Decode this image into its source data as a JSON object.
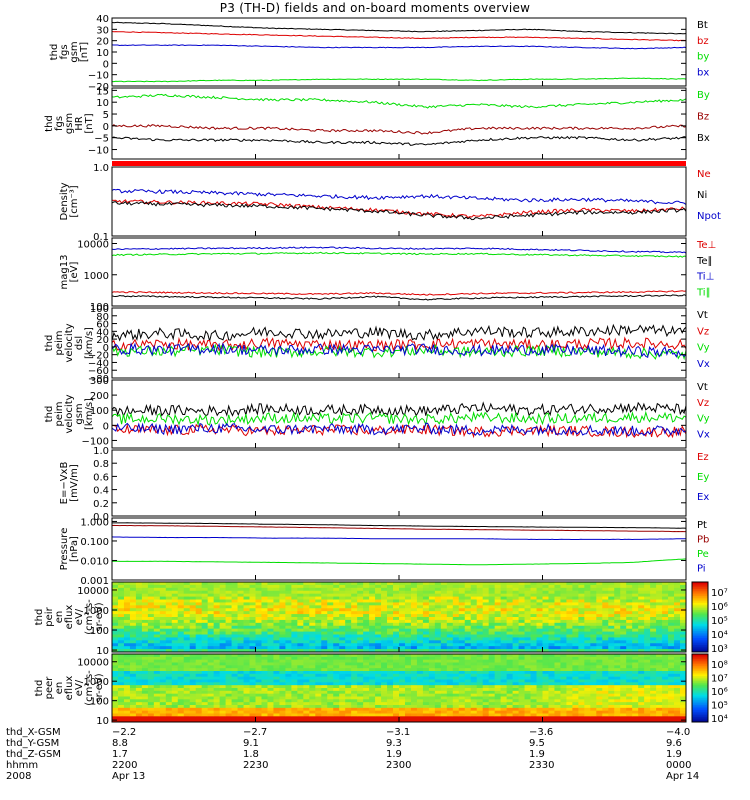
{
  "title": "P3 (TH-D) fields and on-board moments overview",
  "chart_data": [
    {
      "id": "fgs_gsm",
      "type": "line",
      "ylabel": [
        "thd",
        "fgs",
        "gsm",
        "[nT]"
      ],
      "ylim": [
        -20,
        40
      ],
      "log": false,
      "ticks": [
        "40",
        "30",
        "20",
        "10",
        "0",
        "−10",
        "−20"
      ],
      "tickvals": [
        40,
        30,
        20,
        10,
        0,
        -10,
        -20
      ],
      "series": [
        {
          "name": "Bt",
          "color": "#000000",
          "values": [
            36,
            35,
            33,
            31,
            30,
            29,
            28,
            29,
            30,
            28,
            27,
            26
          ]
        },
        {
          "name": "bz",
          "color": "#dd0000",
          "values": [
            28,
            27,
            26,
            25,
            24,
            23,
            22,
            23,
            23,
            22,
            21,
            20
          ]
        },
        {
          "name": "by",
          "color": "#00dd00",
          "values": [
            -16,
            -16,
            -15,
            -15,
            -14,
            -14,
            -14,
            -15,
            -14,
            -14,
            -13,
            -14
          ]
        },
        {
          "name": "bx",
          "color": "#0000cc",
          "values": [
            16,
            16,
            16,
            15,
            14,
            14,
            14,
            15,
            15,
            14,
            13,
            14
          ]
        }
      ]
    },
    {
      "id": "fgs_gsm_hr",
      "type": "line",
      "ylabel": [
        "thd",
        "fgs",
        "gsm",
        "HR",
        "[nT]"
      ],
      "ylim": [
        -14,
        16
      ],
      "log": false,
      "ticks": [
        "15",
        "10",
        "5",
        "0",
        "−5",
        "−10"
      ],
      "tickvals": [
        15,
        10,
        5,
        0,
        -5,
        -10
      ],
      "series": [
        {
          "name": "By",
          "color": "#00dd00",
          "values": [
            12,
            13,
            12,
            11,
            11,
            10,
            8,
            9,
            8,
            9,
            10,
            11
          ]
        },
        {
          "name": "Bz",
          "color": "#990000",
          "values": [
            0,
            0,
            -1,
            -1,
            -2,
            -2,
            -3,
            -1,
            -1,
            -1,
            -1,
            0
          ]
        },
        {
          "name": "Bx",
          "color": "#000000",
          "values": [
            -5,
            -6,
            -6,
            -6,
            -7,
            -7,
            -8,
            -6,
            -5,
            -5,
            -6,
            -5
          ]
        }
      ]
    },
    {
      "id": "density",
      "type": "line",
      "ylabel": [
        "Density",
        "[cm⁻³]"
      ],
      "ylim": [
        0.1,
        1.0
      ],
      "log": true,
      "ticks": [
        "1.0",
        "0.1"
      ],
      "tickvals": [
        1.0,
        0.1
      ],
      "series": [
        {
          "name": "Ne",
          "color": "#dd0000",
          "values": [
            0.32,
            0.31,
            0.3,
            0.29,
            0.26,
            0.24,
            0.21,
            0.19,
            0.22,
            0.24,
            0.23,
            0.25
          ]
        },
        {
          "name": "Ni",
          "color": "#000000",
          "values": [
            0.3,
            0.29,
            0.28,
            0.27,
            0.25,
            0.23,
            0.2,
            0.18,
            0.2,
            0.22,
            0.22,
            0.24
          ]
        },
        {
          "name": "Npot",
          "color": "#0000cc",
          "values": [
            0.45,
            0.44,
            0.42,
            0.4,
            0.38,
            0.36,
            0.38,
            0.35,
            0.33,
            0.34,
            0.32,
            0.3
          ]
        }
      ]
    },
    {
      "id": "temperature",
      "type": "line",
      "ylabel": [
        "mag13",
        "[eV]"
      ],
      "ylim": [
        100,
        15000
      ],
      "log": true,
      "ticks": [
        "10000",
        "1000",
        "100"
      ],
      "tickvals": [
        10000,
        1000,
        100
      ],
      "series": [
        {
          "name": "Te⊥",
          "color": "#dd0000",
          "values": [
            280,
            270,
            260,
            250,
            240,
            260,
            230,
            250,
            260,
            270,
            280,
            300
          ]
        },
        {
          "name": "Te∥",
          "color": "#000000",
          "values": [
            210,
            200,
            190,
            180,
            170,
            200,
            160,
            180,
            190,
            200,
            210,
            220
          ]
        },
        {
          "name": "Ti⊥",
          "color": "#0000cc",
          "values": [
            6500,
            6800,
            7000,
            7200,
            7500,
            7000,
            6800,
            7000,
            6500,
            6000,
            5500,
            5200
          ]
        },
        {
          "name": "Ti∥",
          "color": "#00dd00",
          "values": [
            4300,
            4500,
            4700,
            4800,
            5000,
            4800,
            4600,
            4700,
            4400,
            4200,
            4000,
            3800
          ]
        }
      ]
    },
    {
      "id": "peim_velocity_dsl",
      "type": "line",
      "ylabel": [
        "thd",
        "peim",
        "velocity",
        "dsl",
        "[km/s]"
      ],
      "ylim": [
        -80,
        100
      ],
      "log": false,
      "ticks": [
        "100",
        "80",
        "60",
        "40",
        "20",
        "0",
        "−20",
        "−40",
        "−60",
        "−80"
      ],
      "tickvals": [
        100,
        80,
        60,
        40,
        20,
        0,
        -20,
        -40,
        -60,
        -80
      ],
      "series": [
        {
          "name": "Vt",
          "color": "#000000",
          "values": [
            30,
            35,
            28,
            40,
            33,
            38,
            30,
            42,
            36,
            40,
            45,
            38
          ]
        },
        {
          "name": "Vz",
          "color": "#dd0000",
          "values": [
            5,
            8,
            3,
            10,
            6,
            4,
            7,
            9,
            5,
            8,
            10,
            6
          ]
        },
        {
          "name": "Vy",
          "color": "#00dd00",
          "values": [
            -10,
            -12,
            -8,
            -15,
            -11,
            -13,
            -9,
            -14,
            -10,
            -12,
            -16,
            -20
          ]
        },
        {
          "name": "Vx",
          "color": "#0000cc",
          "values": [
            -5,
            -7,
            -4,
            -9,
            -6,
            -8,
            -5,
            -10,
            -7,
            -9,
            -12,
            -15
          ]
        }
      ]
    },
    {
      "id": "peim_velocity_gsm",
      "type": "line",
      "ylabel": [
        "thd",
        "peim",
        "velocity",
        "gsm",
        "[km/s]"
      ],
      "ylim": [
        -150,
        300
      ],
      "log": false,
      "ticks": [
        "300",
        "200",
        "100",
        "0",
        "−100"
      ],
      "tickvals": [
        300,
        200,
        100,
        0,
        -100
      ],
      "series": [
        {
          "name": "Vt",
          "color": "#000000",
          "values": [
            90,
            100,
            95,
            110,
            100,
            105,
            95,
            115,
            100,
            110,
            120,
            105
          ]
        },
        {
          "name": "Vz",
          "color": "#dd0000",
          "values": [
            -30,
            -35,
            -25,
            -40,
            -30,
            -35,
            -28,
            -42,
            -32,
            -38,
            -45,
            -40
          ]
        },
        {
          "name": "Vy",
          "color": "#00dd00",
          "values": [
            40,
            45,
            35,
            50,
            42,
            48,
            38,
            52,
            44,
            46,
            55,
            50
          ]
        },
        {
          "name": "Vx",
          "color": "#0000cc",
          "values": [
            -20,
            -25,
            -18,
            -30,
            -22,
            -28,
            -20,
            -35,
            -24,
            -30,
            -38,
            -32
          ]
        }
      ]
    },
    {
      "id": "e_field",
      "type": "line",
      "ylabel": [
        "E=−VxB",
        "[mV/m]"
      ],
      "ylim": [
        0,
        1.0
      ],
      "log": false,
      "ticks": [
        "1.0",
        "0.8",
        "0.6",
        "0.4",
        "0.2",
        "0.0"
      ],
      "tickvals": [
        1.0,
        0.8,
        0.6,
        0.4,
        0.2,
        0.0
      ],
      "series": [
        {
          "name": "Ez",
          "color": "#dd0000",
          "values": []
        },
        {
          "name": "Ey",
          "color": "#00dd00",
          "values": []
        },
        {
          "name": "Ex",
          "color": "#0000cc",
          "values": []
        }
      ]
    },
    {
      "id": "pressure",
      "type": "line",
      "ylabel": [
        "Pressure",
        "[nPa]"
      ],
      "ylim": [
        0.001,
        1.5
      ],
      "log": true,
      "ticks": [
        "1.000",
        "0.100",
        "0.010",
        "0.001"
      ],
      "tickvals": [
        1.0,
        0.1,
        0.01,
        0.001
      ],
      "series": [
        {
          "name": "Pt",
          "color": "#000000",
          "values": [
            0.85,
            0.82,
            0.78,
            0.72,
            0.68,
            0.62,
            0.58,
            0.55,
            0.52,
            0.5,
            0.48,
            0.45
          ]
        },
        {
          "name": "Pb",
          "color": "#990000",
          "values": [
            0.62,
            0.6,
            0.56,
            0.52,
            0.48,
            0.44,
            0.4,
            0.38,
            0.36,
            0.34,
            0.32,
            0.3
          ]
        },
        {
          "name": "Pe",
          "color": "#00dd00",
          "values": [
            0.009,
            0.009,
            0.0085,
            0.008,
            0.0075,
            0.007,
            0.0065,
            0.006,
            0.0065,
            0.007,
            0.008,
            0.012
          ]
        },
        {
          "name": "Pi",
          "color": "#0000cc",
          "values": [
            0.16,
            0.15,
            0.15,
            0.14,
            0.14,
            0.13,
            0.13,
            0.13,
            0.12,
            0.12,
            0.12,
            0.13
          ]
        }
      ]
    },
    {
      "id": "peir_eflux",
      "type": "heatmap",
      "ylabel": [
        "thd",
        "peir",
        "en",
        "eflux",
        "eV/",
        "(cm²-s-",
        "sr-eV)"
      ],
      "ylim": [
        8,
        25000
      ],
      "log": true,
      "ticks": [
        "10000",
        "1000",
        "100",
        "10"
      ],
      "tickvals": [
        10000,
        1000,
        100,
        10
      ],
      "colorbar": {
        "ticks": [
          "10⁷",
          "10⁶",
          "10⁵",
          "10⁴",
          "10³"
        ],
        "range": [
          1000,
          10000000
        ]
      }
    },
    {
      "id": "peer_eflux",
      "type": "heatmap",
      "ylabel": [
        "thd",
        "peer",
        "en",
        "eflux",
        "eV/",
        "(cm²-s-",
        "sr-eV)"
      ],
      "ylim": [
        8,
        25000
      ],
      "log": true,
      "ticks": [
        "10000",
        "1000",
        "100",
        "10"
      ],
      "tickvals": [
        10000,
        1000,
        100,
        10
      ],
      "colorbar": {
        "ticks": [
          "10⁸",
          "10⁷",
          "10⁶",
          "10⁵",
          "10⁴"
        ],
        "range": [
          3000,
          300000000
        ]
      }
    }
  ],
  "footer": {
    "rows": [
      {
        "label": "thd_X-GSM",
        "values": [
          "−2.2",
          "−2.7",
          "−3.1",
          "−3.6",
          "−4.0"
        ]
      },
      {
        "label": "thd_Y-GSM",
        "values": [
          "8.8",
          "9.1",
          "9.3",
          "9.5",
          "9.6"
        ]
      },
      {
        "label": "thd_Z-GSM",
        "values": [
          "1.7",
          "1.8",
          "1.9",
          "1.9",
          "1.9"
        ]
      },
      {
        "label": "hhmm",
        "values": [
          "2200",
          "2230",
          "2300",
          "2330",
          "0000"
        ]
      },
      {
        "label": "2008",
        "values": [
          "Apr 13",
          "",
          "",
          "",
          "Apr 14"
        ]
      }
    ]
  }
}
